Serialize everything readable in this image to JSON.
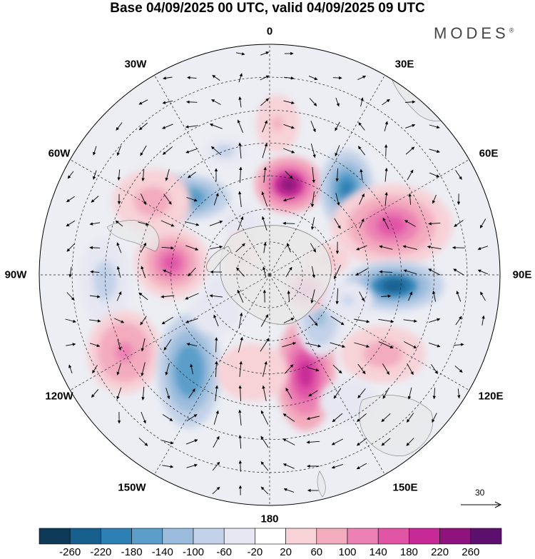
{
  "title": "Base 04/09/2025 00 UTC, valid 04/09/2025 09 UTC",
  "brand": "MODES",
  "brand_mark": "®",
  "longitude_labels": {
    "top": "0",
    "top_left": "30W",
    "top_right": "30E",
    "upper_left": "60W",
    "upper_right": "60E",
    "left": "90W",
    "right": "90E",
    "lower_left": "120W",
    "lower_right": "120E",
    "bottom_left": "150W",
    "bottom_right": "150E",
    "bottom": "180"
  },
  "reference_vector": {
    "value": "30"
  },
  "colorbar": {
    "ticks": [
      "-260",
      "-220",
      "-180",
      "-140",
      "-100",
      "-60",
      "-20",
      "20",
      "60",
      "100",
      "140",
      "180",
      "220",
      "260"
    ],
    "colors": [
      "#0f3a57",
      "#175f8c",
      "#2e7fb4",
      "#5a9ec9",
      "#9bbcdc",
      "#c3d2e8",
      "#e6e7f2",
      "#ffffff",
      "#f7d2d7",
      "#f3acbd",
      "#ec82b4",
      "#e055a6",
      "#c62a96",
      "#8e137c",
      "#5c0f6d"
    ]
  },
  "anomalies": [
    {
      "lon": -20,
      "lat": -50,
      "value": -80,
      "sx": 30,
      "sy": 18
    },
    {
      "lon": -48,
      "lat": -55,
      "value": -200,
      "sx": 65,
      "sy": 32
    },
    {
      "lon": 12,
      "lat": -62,
      "value": 230,
      "sx": 48,
      "sy": 40
    },
    {
      "lon": 3,
      "lat": -44,
      "value": 60,
      "sx": 30,
      "sy": 40
    },
    {
      "lon": 42,
      "lat": -55,
      "value": -220,
      "sx": 38,
      "sy": 55
    },
    {
      "lon": 68,
      "lat": -50,
      "value": 170,
      "sx": 85,
      "sy": 58
    },
    {
      "lon": 75,
      "lat": -72,
      "value": 60,
      "sx": 32,
      "sy": 22
    },
    {
      "lon": -58,
      "lat": -48,
      "value": 80,
      "sx": 55,
      "sy": 45
    },
    {
      "lon": -28,
      "lat": -72,
      "value": -50,
      "sx": 28,
      "sy": 22
    },
    {
      "lon": -83,
      "lat": -60,
      "value": 160,
      "sx": 52,
      "sy": 50
    },
    {
      "lon": -92,
      "lat": -40,
      "value": -90,
      "sx": 35,
      "sy": 60
    },
    {
      "lon": -118,
      "lat": -40,
      "value": 110,
      "sx": 52,
      "sy": 58
    },
    {
      "lon": -140,
      "lat": -52,
      "value": -180,
      "sx": 45,
      "sy": 80
    },
    {
      "lon": -125,
      "lat": -70,
      "value": -60,
      "sx": 35,
      "sy": 30
    },
    {
      "lon": 160,
      "lat": -58,
      "value": 210,
      "sx": 42,
      "sy": 80
    },
    {
      "lon": 130,
      "lat": -70,
      "value": -120,
      "sx": 35,
      "sy": 55
    },
    {
      "lon": 95,
      "lat": -52,
      "value": -230,
      "sx": 70,
      "sy": 35
    },
    {
      "lon": 112,
      "lat": -78,
      "value": 160,
      "sx": 32,
      "sy": 32
    },
    {
      "lon": 125,
      "lat": -48,
      "value": 90,
      "sx": 60,
      "sy": 40
    },
    {
      "lon": 108,
      "lat": -65,
      "value": -70,
      "sx": 35,
      "sy": 25
    },
    {
      "lon": -170,
      "lat": -60,
      "value": 50,
      "sx": 50,
      "sy": 40
    },
    {
      "lon": 148,
      "lat": -45,
      "value": -60,
      "sx": 40,
      "sy": 30
    },
    {
      "lon": -110,
      "lat": -75,
      "value": -40,
      "sx": 25,
      "sy": 25
    },
    {
      "lon": -55,
      "lat": -80,
      "value": 70,
      "sx": 25,
      "sy": 35
    }
  ]
}
